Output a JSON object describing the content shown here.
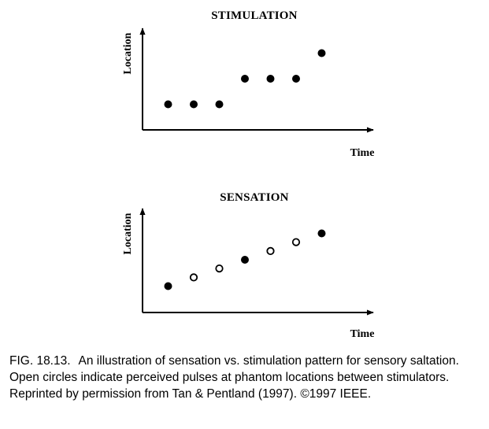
{
  "chart_data": [
    {
      "type": "scatter",
      "title": "STIMULATION",
      "xlabel": "Time",
      "ylabel": "Location",
      "xlim": [
        0,
        9
      ],
      "ylim": [
        0,
        5
      ],
      "grid": false,
      "series": [
        {
          "x": [
            1,
            2,
            3,
            4,
            5,
            6,
            7
          ],
          "y": [
            1,
            1,
            1,
            2,
            2,
            2,
            3
          ],
          "marker": "filled"
        }
      ]
    },
    {
      "type": "scatter",
      "title": "SENSATION",
      "xlabel": "Time",
      "ylabel": "Location",
      "xlim": [
        0,
        9
      ],
      "ylim": [
        0,
        5
      ],
      "grid": false,
      "series": [
        {
          "x": [
            1,
            4,
            7
          ],
          "y": [
            1,
            2,
            3
          ],
          "marker": "filled"
        },
        {
          "x": [
            2,
            3,
            5,
            6
          ],
          "y": [
            1.33,
            1.67,
            2.33,
            2.67
          ],
          "marker": "open"
        }
      ]
    }
  ],
  "caption": {
    "number": "FIG. 18.13.",
    "text": "An illustration of sensation vs. stimulation pattern for sensory saltation. Open circles indicate perceived pulses at phantom locations between stimulators. Reprinted by permission from Tan & Pentland (1997). ©1997 IEEE."
  }
}
